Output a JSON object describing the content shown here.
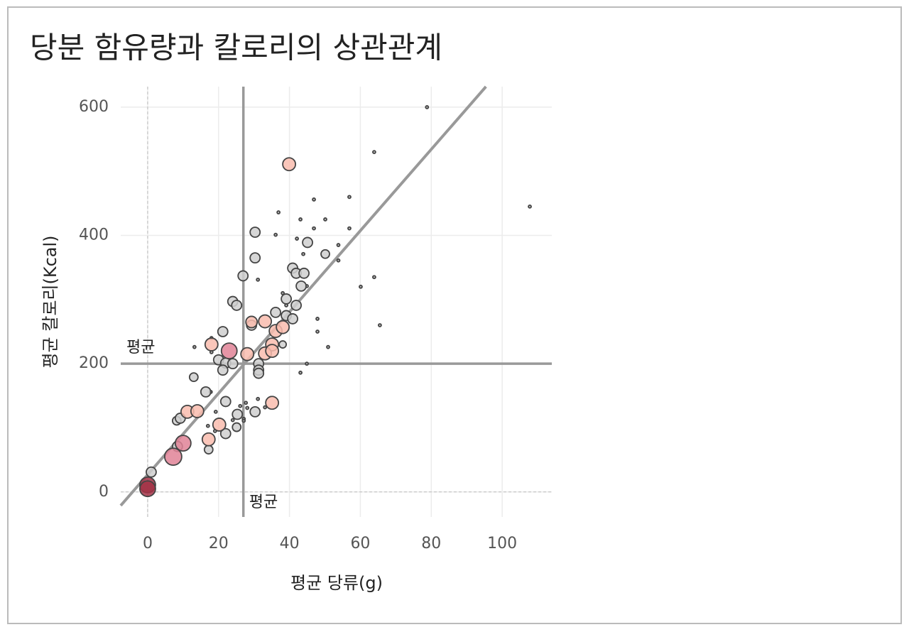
{
  "chart_data": {
    "type": "scatter",
    "title": "당분 함유량과 칼로리의 상관관계",
    "x_label": "평균 당류(g)",
    "y_label": "평균 칼로리(Kcal)",
    "xlim": [
      -7.6,
      114
    ],
    "ylim": [
      -39,
      632
    ],
    "xticks": [
      0,
      20,
      40,
      60,
      80,
      100
    ],
    "yticks": [
      0,
      200,
      400,
      600
    ],
    "grid": true,
    "x_mean": {
      "value": 27,
      "label": "평균"
    },
    "y_mean": {
      "value": 200,
      "label": "평균"
    },
    "trend": {
      "slope": 6.34,
      "intercept": 27
    },
    "x": [
      78.8,
      63.9,
      107.8,
      56.9,
      46.9,
      36.9,
      43.1,
      50.1,
      56.9,
      46.9,
      36.1,
      42.1,
      53.8,
      43.9,
      53.8,
      63.9,
      31.1,
      60.1,
      44.9,
      38.1,
      39.1,
      47.9,
      65.5,
      47.9,
      50.9,
      13.2,
      18.0,
      18.0,
      44.9,
      43.1,
      17.8,
      31.1,
      26.1,
      28.1,
      27.7,
      33.1,
      27.1,
      27.1,
      24.0,
      19.0,
      17.0,
      19.2,
      30.3,
      30.3,
      26.9,
      50.1,
      45.1,
      40.9,
      41.9,
      44.1,
      43.3,
      39.1,
      41.9,
      24.0,
      25.1,
      36.1,
      39.1,
      40.9,
      38.1,
      29.3,
      21.2,
      20.0,
      22.0,
      24.0,
      21.2,
      31.3,
      31.3,
      31.3,
      13.0,
      16.4,
      22.0,
      25.3,
      30.3,
      25.1,
      22.0,
      8.2,
      9.2,
      17.2,
      8.4,
      1.0,
      39.9,
      29.3,
      33.1,
      36.1,
      38.1,
      35.1,
      33.1,
      35.1,
      28.1,
      18.0,
      35.1,
      11.2,
      14.0,
      20.2,
      17.2,
      23.0,
      10.0,
      7.2,
      0,
      0
    ],
    "y": [
      600,
      530,
      445,
      460,
      456,
      436,
      425,
      425,
      411,
      411,
      401,
      395,
      385,
      371,
      361,
      335,
      331,
      320,
      321,
      310,
      291,
      270,
      260,
      250,
      226,
      226,
      240,
      218,
      200,
      186,
      156,
      145,
      134,
      131,
      139,
      132,
      114,
      111,
      112,
      95,
      103,
      125,
      405,
      365,
      337,
      371,
      389,
      349,
      341,
      341,
      321,
      301,
      291,
      297,
      291,
      280,
      275,
      270,
      230,
      260,
      250,
      206,
      201,
      200,
      190,
      200,
      190,
      185,
      179,
      156,
      141,
      121,
      125,
      101,
      91,
      111,
      115,
      66,
      71,
      31,
      511,
      265,
      266,
      251,
      257,
      230,
      216,
      220,
      215,
      230,
      139,
      125,
      126,
      105,
      82,
      220,
      76,
      55,
      11,
      5
    ],
    "sizes": [
      2,
      2,
      2,
      2,
      2,
      2,
      2,
      2,
      2,
      2,
      2,
      2,
      2,
      2,
      2,
      2,
      2,
      2,
      2,
      2,
      2,
      2,
      2,
      2,
      2,
      2,
      2,
      2,
      2,
      2,
      2,
      2,
      2,
      2,
      2,
      2,
      2,
      2,
      2,
      2,
      2,
      2,
      7,
      7,
      7,
      6,
      7,
      7,
      7,
      7,
      7,
      7,
      7,
      7,
      7,
      7,
      7,
      7,
      5,
      7,
      7,
      7,
      7,
      7,
      7,
      7,
      7,
      7,
      6,
      7,
      7,
      7,
      7,
      6,
      7,
      6,
      7,
      6,
      7,
      7,
      9,
      8,
      9,
      9,
      9,
      9,
      9,
      9,
      9,
      9,
      9,
      9,
      9,
      9,
      9,
      11,
      11,
      12,
      11,
      11
    ],
    "colors": [
      "#aaa",
      "#aaa",
      "#aaa",
      "#aaa",
      "#aaa",
      "#aaa",
      "#aaa",
      "#aaa",
      "#aaa",
      "#aaa",
      "#aaa",
      "#aaa",
      "#aaa",
      "#aaa",
      "#aaa",
      "#aaa",
      "#aaa",
      "#aaa",
      "#aaa",
      "#aaa",
      "#aaa",
      "#aaa",
      "#aaa",
      "#aaa",
      "#aaa",
      "#aaa",
      "#aaa",
      "#aaa",
      "#aaa",
      "#aaa",
      "#aaa",
      "#aaa",
      "#aaa",
      "#aaa",
      "#aaa",
      "#aaa",
      "#aaa",
      "#aaa",
      "#aaa",
      "#aaa",
      "#aaa",
      "#aaa",
      "#cfcfcf",
      "#cfcfcf",
      "#cfcfcf",
      "#cfcfcf",
      "#cfcfcf",
      "#cfcfcf",
      "#cfcfcf",
      "#cfcfcf",
      "#cfcfcf",
      "#cfcfcf",
      "#cfcfcf",
      "#cfcfcf",
      "#cfcfcf",
      "#cfcfcf",
      "#cfcfcf",
      "#cfcfcf",
      "#cfcfcf",
      "#cfcfcf",
      "#cfcfcf",
      "#cfcfcf",
      "#cfcfcf",
      "#cfcfcf",
      "#cfcfcf",
      "#cfcfcf",
      "#cfcfcf",
      "#cfcfcf",
      "#cfcfcf",
      "#cfcfcf",
      "#cfcfcf",
      "#cfcfcf",
      "#cfcfcf",
      "#cfcfcf",
      "#cfcfcf",
      "#cfcfcf",
      "#cfcfcf",
      "#cfcfcf",
      "#cfcfcf",
      "#cfcfcf",
      "#f9bcae",
      "#f9bcae",
      "#f9bcae",
      "#f9bcae",
      "#f9bcae",
      "#f9bcae",
      "#f9bcae",
      "#f9bcae",
      "#f9bcae",
      "#f9bcae",
      "#f9bcae",
      "#f9bcae",
      "#f9bcae",
      "#f9bcae",
      "#f9bcae",
      "#e08396",
      "#e08396",
      "#e08396",
      "#a33347",
      "#a33347"
    ]
  }
}
